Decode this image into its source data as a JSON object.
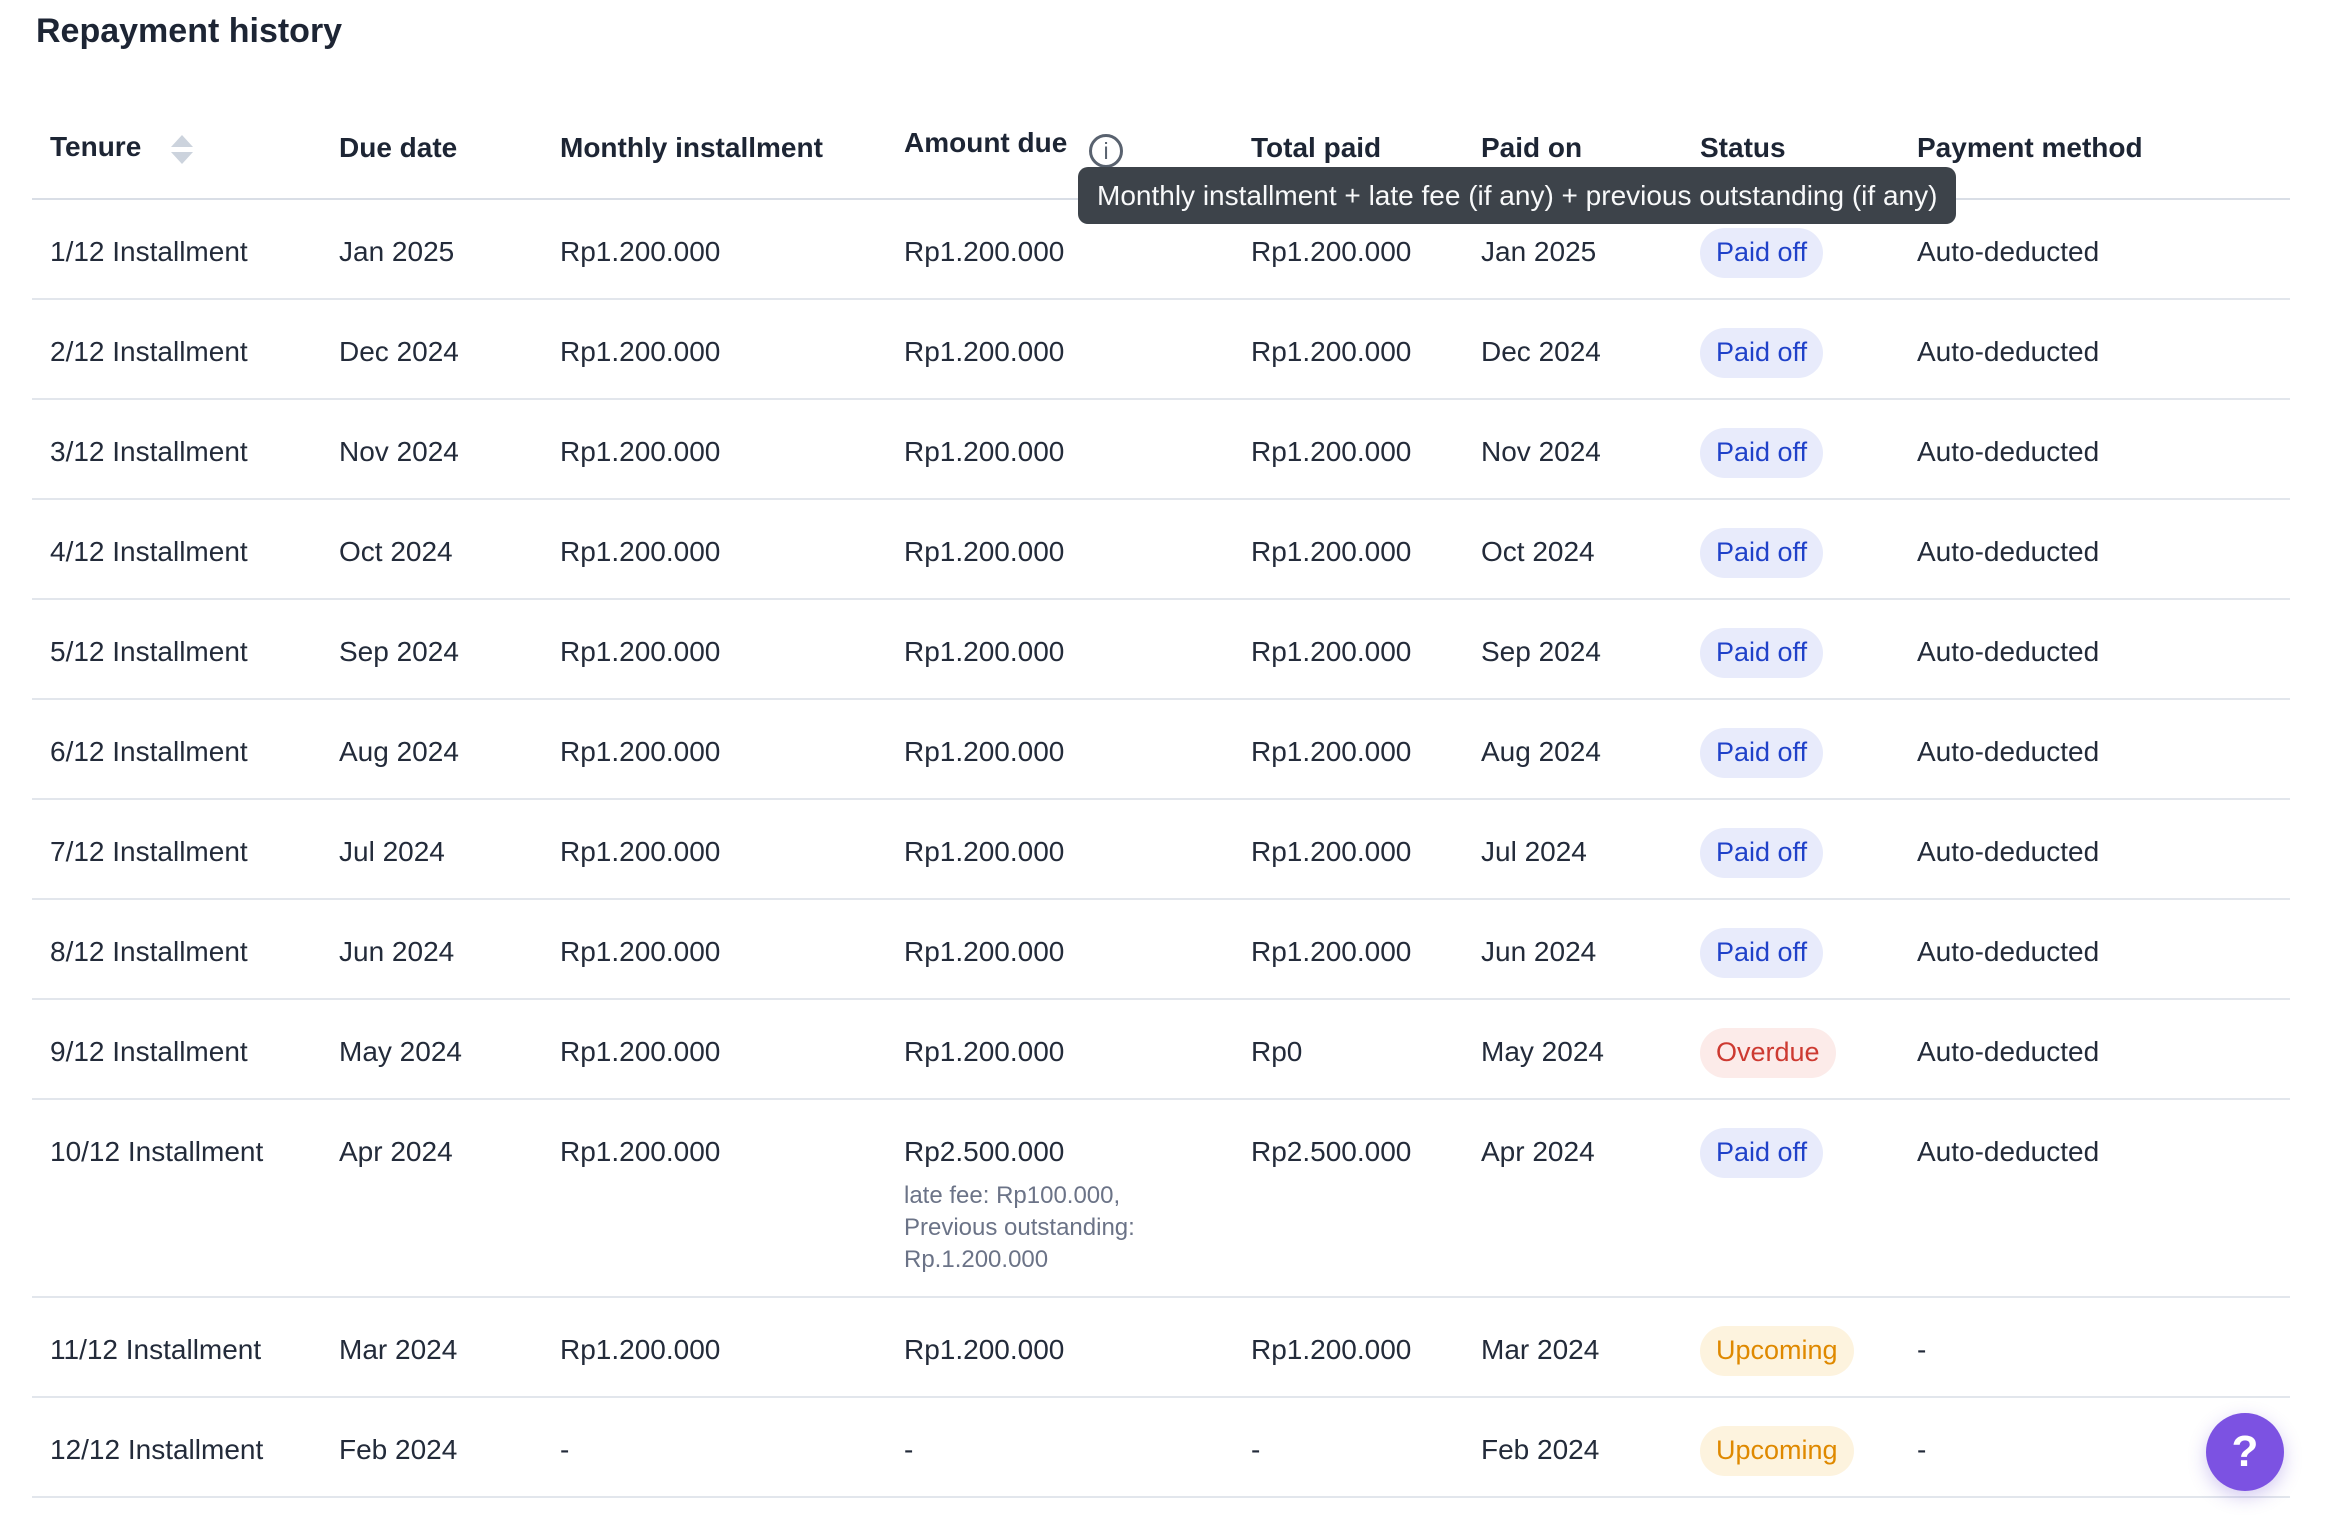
{
  "page": {
    "title": "Repayment history"
  },
  "icons": {
    "info_glyph": "i"
  },
  "tooltip": {
    "text": "Monthly installment + late fee (if any) + previous outstanding (if any)"
  },
  "help_button": {
    "label": "?"
  },
  "colors": {
    "paid_off_text": "#1f41c9",
    "paid_off_bg": "#e8ebfb",
    "overdue_text": "#cd3a31",
    "overdue_bg": "#fcebe9",
    "upcoming_text": "#df8900",
    "upcoming_bg": "#fdf3de",
    "tooltip_bg": "#3d434a",
    "help_button_bg": "#7c52e2"
  },
  "table": {
    "columns": {
      "tenure": "Tenure",
      "due_date": "Due date",
      "monthly_installment": "Monthly installment",
      "amount_due": "Amount due",
      "total_paid": "Total paid",
      "paid_on": "Paid on",
      "status": "Status",
      "payment_method": "Payment method"
    },
    "status_styles": {
      "Paid off": "paid",
      "Overdue": "overdue",
      "Upcoming": "upcoming"
    },
    "rows": [
      {
        "tenure": "1/12 Installment",
        "due_date": "Jan 2025",
        "monthly_installment": "Rp1.200.000",
        "amount_due": "Rp1.200.000",
        "amount_due_note": [],
        "total_paid": "Rp1.200.000",
        "paid_on": "Jan 2025",
        "status": "Paid off",
        "payment_method": "Auto-deducted"
      },
      {
        "tenure": "2/12 Installment",
        "due_date": "Dec 2024",
        "monthly_installment": "Rp1.200.000",
        "amount_due": "Rp1.200.000",
        "amount_due_note": [],
        "total_paid": "Rp1.200.000",
        "paid_on": "Dec 2024",
        "status": "Paid off",
        "payment_method": "Auto-deducted"
      },
      {
        "tenure": "3/12 Installment",
        "due_date": "Nov 2024",
        "monthly_installment": "Rp1.200.000",
        "amount_due": "Rp1.200.000",
        "amount_due_note": [],
        "total_paid": "Rp1.200.000",
        "paid_on": "Nov 2024",
        "status": "Paid off",
        "payment_method": "Auto-deducted"
      },
      {
        "tenure": "4/12 Installment",
        "due_date": "Oct 2024",
        "monthly_installment": "Rp1.200.000",
        "amount_due": "Rp1.200.000",
        "amount_due_note": [],
        "total_paid": "Rp1.200.000",
        "paid_on": "Oct 2024",
        "status": "Paid off",
        "payment_method": "Auto-deducted"
      },
      {
        "tenure": "5/12 Installment",
        "due_date": "Sep 2024",
        "monthly_installment": "Rp1.200.000",
        "amount_due": "Rp1.200.000",
        "amount_due_note": [],
        "total_paid": "Rp1.200.000",
        "paid_on": "Sep 2024",
        "status": "Paid off",
        "payment_method": "Auto-deducted"
      },
      {
        "tenure": "6/12 Installment",
        "due_date": "Aug 2024",
        "monthly_installment": "Rp1.200.000",
        "amount_due": "Rp1.200.000",
        "amount_due_note": [],
        "total_paid": "Rp1.200.000",
        "paid_on": "Aug 2024",
        "status": "Paid off",
        "payment_method": "Auto-deducted"
      },
      {
        "tenure": "7/12 Installment",
        "due_date": "Jul 2024",
        "monthly_installment": "Rp1.200.000",
        "amount_due": "Rp1.200.000",
        "amount_due_note": [],
        "total_paid": "Rp1.200.000",
        "paid_on": "Jul 2024",
        "status": "Paid off",
        "payment_method": "Auto-deducted"
      },
      {
        "tenure": "8/12 Installment",
        "due_date": "Jun 2024",
        "monthly_installment": "Rp1.200.000",
        "amount_due": "Rp1.200.000",
        "amount_due_note": [],
        "total_paid": "Rp1.200.000",
        "paid_on": "Jun 2024",
        "status": "Paid off",
        "payment_method": "Auto-deducted"
      },
      {
        "tenure": "9/12 Installment",
        "due_date": "May 2024",
        "monthly_installment": "Rp1.200.000",
        "amount_due": "Rp1.200.000",
        "amount_due_note": [],
        "total_paid": "Rp0",
        "paid_on": "May 2024",
        "status": "Overdue",
        "payment_method": "Auto-deducted"
      },
      {
        "tenure": "10/12 Installment",
        "due_date": "Apr 2024",
        "monthly_installment": "Rp1.200.000",
        "amount_due": "Rp2.500.000",
        "amount_due_note": [
          "late fee: Rp100.000,",
          "Previous outstanding:",
          "Rp.1.200.000"
        ],
        "total_paid": "Rp2.500.000",
        "paid_on": "Apr 2024",
        "status": "Paid off",
        "payment_method": "Auto-deducted"
      },
      {
        "tenure": "11/12 Installment",
        "due_date": "Mar 2024",
        "monthly_installment": "Rp1.200.000",
        "amount_due": "Rp1.200.000",
        "amount_due_note": [],
        "total_paid": "Rp1.200.000",
        "paid_on": "Mar 2024",
        "status": "Upcoming",
        "payment_method": "-"
      },
      {
        "tenure": "12/12 Installment",
        "due_date": "Feb 2024",
        "monthly_installment": "-",
        "amount_due": "-",
        "amount_due_note": [],
        "total_paid": "-",
        "paid_on": "Feb 2024",
        "status": "Upcoming",
        "payment_method": "-"
      }
    ]
  }
}
